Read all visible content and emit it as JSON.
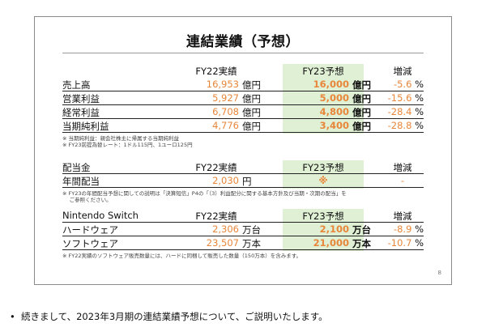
{
  "title": "連結業績（予想）",
  "table1": {
    "headers": {
      "label": "",
      "fy22": "FY22実績",
      "fy23": "FY23予想",
      "change": "増減"
    },
    "rows": [
      {
        "label": "売上高",
        "fy22": "16,953",
        "fy22_unit": "億円",
        "fy23": "16,000",
        "fy23_unit": "億円",
        "change": "-5.6",
        "pct": "%"
      },
      {
        "label": "営業利益",
        "fy22": "5,927",
        "fy22_unit": "億円",
        "fy23": "5,000",
        "fy23_unit": "億円",
        "change": "-15.6",
        "pct": "%"
      },
      {
        "label": "経常利益",
        "fy22": "6,708",
        "fy22_unit": "億円",
        "fy23": "4,800",
        "fy23_unit": "億円",
        "change": "-28.4",
        "pct": "%"
      },
      {
        "label": "当期純利益",
        "fy22": "4,776",
        "fy22_unit": "億円",
        "fy23": "3,400",
        "fy23_unit": "億円",
        "change": "-28.8",
        "pct": "%"
      }
    ],
    "notes": [
      "※ 当期純利益：親会社株主に帰属する当期純利益",
      "※ FY23前提為替レート：1ドル115円、1ユーロ125円"
    ]
  },
  "table2": {
    "headers": {
      "label": "配当金",
      "fy22": "FY22実績",
      "fy23": "FY23予想",
      "change": "増減"
    },
    "rows": [
      {
        "label": "年間配当",
        "fy22": "2,030",
        "fy22_unit": "円",
        "fy23": "※",
        "change": "-"
      }
    ],
    "notes": [
      "※ FY23の年間配当予想に関しての説明は「決算短信」P4の「（3）利益配分に関する基本方針及び当期・次期の配当」を",
      "　 ご参照ください。"
    ]
  },
  "table3": {
    "headers": {
      "label": "Nintendo Switch",
      "fy22": "FY22実績",
      "fy23": "FY23予想",
      "change": "増減"
    },
    "rows": [
      {
        "label": "ハードウェア",
        "fy22": "2,306",
        "fy22_unit": "万台",
        "fy23": "2,100",
        "fy23_unit": "万台",
        "change": "-8.9",
        "pct": "%"
      },
      {
        "label": "ソフトウェア",
        "fy22": "23,507",
        "fy22_unit": "万本",
        "fy23": "21,000",
        "fy23_unit": "万本",
        "change": "-10.7",
        "pct": "%"
      }
    ],
    "notes": [
      "※ FY22実績のソフトウェア販売数量には、ハードに同梱して販売した数量（150万本）を含みます。"
    ]
  },
  "page_number": "8",
  "bullet": "続きまして、2023年3月期の連結業績予想について、ご説明いたします。",
  "colors": {
    "accent_orange": "#e8863a",
    "highlight_green": "#dff0d4",
    "border": "#8a8a8a"
  }
}
